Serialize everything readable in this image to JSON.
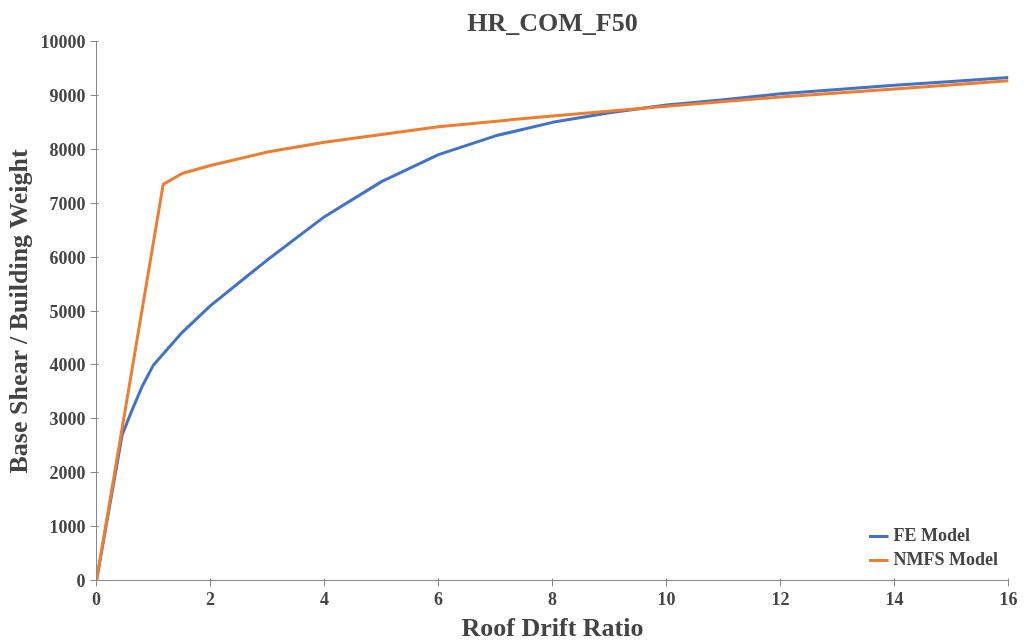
{
  "chart_data": {
    "type": "line",
    "title": "HR_COM_F50",
    "xlabel": "Roof Drift Ratio",
    "ylabel": "Base Shear / Building Weight",
    "xlim": [
      0,
      16
    ],
    "xticks": [
      0,
      2,
      4,
      6,
      8,
      10,
      12,
      14,
      16
    ],
    "ylim": [
      0,
      10000
    ],
    "yticks": [
      0,
      1000,
      2000,
      3000,
      4000,
      5000,
      6000,
      7000,
      8000,
      9000,
      10000
    ],
    "grid": false,
    "legend": "bottom right",
    "marker": "none",
    "line_style": "solid",
    "series": [
      {
        "name": "FE Model",
        "color": "#4472c4",
        "x": [
          0,
          0.3,
          0.45,
          0.6,
          0.8,
          1,
          1.5,
          2,
          3,
          4,
          5,
          6,
          7,
          8,
          9,
          10,
          11,
          12,
          13,
          14,
          15,
          16
        ],
        "values": [
          0,
          1800,
          2700,
          3100,
          3600,
          4000,
          4600,
          5100,
          5950,
          6750,
          7400,
          7900,
          8250,
          8500,
          8680,
          8820,
          8920,
          9030,
          9110,
          9190,
          9260,
          9330
        ]
      },
      {
        "name": "NMFS Model",
        "color": "#ed7d31",
        "x": [
          0,
          1.17,
          1.5,
          2,
          3,
          4,
          6,
          8,
          10,
          12,
          14,
          16
        ],
        "values": [
          0,
          7350,
          7550,
          7700,
          7950,
          8130,
          8420,
          8620,
          8800,
          8970,
          9120,
          9270
        ]
      }
    ]
  }
}
